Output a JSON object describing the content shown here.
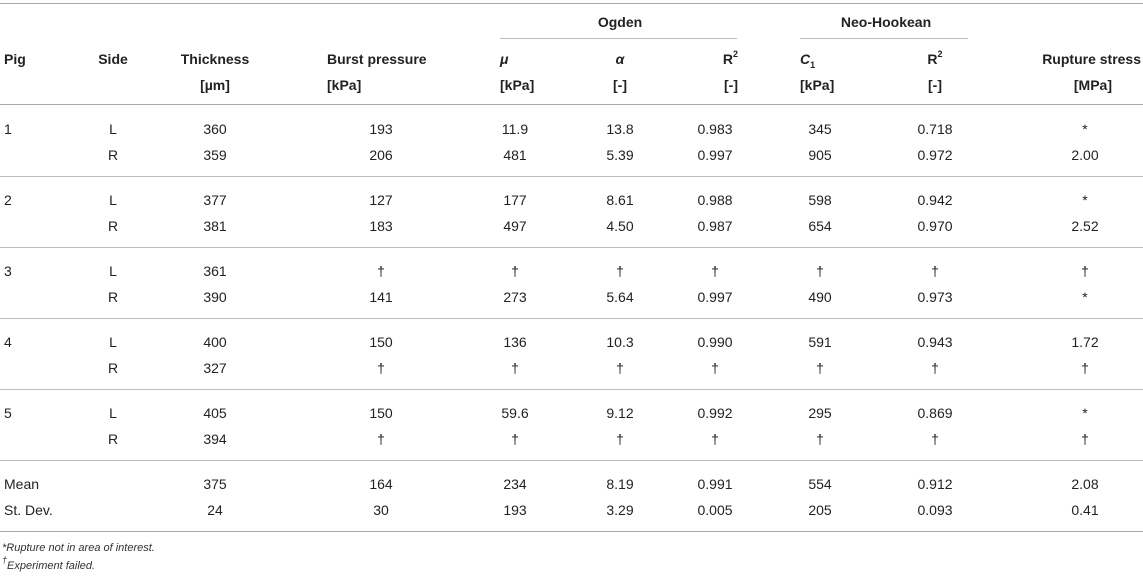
{
  "headers": {
    "group_ogden": "Ogden",
    "group_neo": "Neo-Hookean",
    "pig": "Pig",
    "side": "Side",
    "thickness": "Thickness",
    "thickness_unit": "[µm]",
    "burst": "Burst pressure",
    "burst_unit": "[kPa]",
    "mu": "μ",
    "mu_unit": "[kPa]",
    "alpha": "α",
    "alpha_unit": "[-]",
    "r2_ogden": "R",
    "r2_ogden_sup": "2",
    "r2_ogden_unit": "[-]",
    "c1": "C",
    "c1_sub": "1",
    "c1_unit": "[kPa]",
    "r2_neo": "R",
    "r2_neo_sup": "2",
    "r2_neo_unit": "[-]",
    "rupture": "Rupture stress",
    "rupture_unit": "[MPa]"
  },
  "groups": [
    {
      "pig": "1",
      "rows": [
        {
          "side": "L",
          "thickness": "360",
          "burst": "193",
          "mu": "11.9",
          "alpha": "13.8",
          "r2o": "0.983",
          "c1": "345",
          "r2n": "0.718",
          "rupture": "*"
        },
        {
          "side": "R",
          "thickness": "359",
          "burst": "206",
          "mu": "481",
          "alpha": "5.39",
          "r2o": "0.997",
          "c1": "905",
          "r2n": "0.972",
          "rupture": "2.00"
        }
      ]
    },
    {
      "pig": "2",
      "rows": [
        {
          "side": "L",
          "thickness": "377",
          "burst": "127",
          "mu": "177",
          "alpha": "8.61",
          "r2o": "0.988",
          "c1": "598",
          "r2n": "0.942",
          "rupture": "*"
        },
        {
          "side": "R",
          "thickness": "381",
          "burst": "183",
          "mu": "497",
          "alpha": "4.50",
          "r2o": "0.987",
          "c1": "654",
          "r2n": "0.970",
          "rupture": "2.52"
        }
      ]
    },
    {
      "pig": "3",
      "rows": [
        {
          "side": "L",
          "thickness": "361",
          "burst": "†",
          "mu": "†",
          "alpha": "†",
          "r2o": "†",
          "c1": "†",
          "r2n": "†",
          "rupture": "†"
        },
        {
          "side": "R",
          "thickness": "390",
          "burst": "141",
          "mu": "273",
          "alpha": "5.64",
          "r2o": "0.997",
          "c1": "490",
          "r2n": "0.973",
          "rupture": "*"
        }
      ]
    },
    {
      "pig": "4",
      "rows": [
        {
          "side": "L",
          "thickness": "400",
          "burst": "150",
          "mu": "136",
          "alpha": "10.3",
          "r2o": "0.990",
          "c1": "591",
          "r2n": "0.943",
          "rupture": "1.72"
        },
        {
          "side": "R",
          "thickness": "327",
          "burst": "†",
          "mu": "†",
          "alpha": "†",
          "r2o": "†",
          "c1": "†",
          "r2n": "†",
          "rupture": "†"
        }
      ]
    },
    {
      "pig": "5",
      "rows": [
        {
          "side": "L",
          "thickness": "405",
          "burst": "150",
          "mu": "59.6",
          "alpha": "9.12",
          "r2o": "0.992",
          "c1": "295",
          "r2n": "0.869",
          "rupture": "*"
        },
        {
          "side": "R",
          "thickness": "394",
          "burst": "†",
          "mu": "†",
          "alpha": "†",
          "r2o": "†",
          "c1": "†",
          "r2n": "†",
          "rupture": "†"
        }
      ]
    }
  ],
  "summary": [
    {
      "label": "Mean",
      "thickness": "375",
      "burst": "164",
      "mu": "234",
      "alpha": "8.19",
      "r2o": "0.991",
      "c1": "554",
      "r2n": "0.912",
      "rupture": "2.08"
    },
    {
      "label": "St. Dev.",
      "thickness": "24",
      "burst": "30",
      "mu": "193",
      "alpha": "3.29",
      "r2o": "0.005",
      "c1": "205",
      "r2n": "0.093",
      "rupture": "0.41"
    }
  ],
  "footnotes": {
    "star": "*Rupture not in area of interest.",
    "dagger_mark": "†",
    "dagger": "Experiment failed."
  }
}
